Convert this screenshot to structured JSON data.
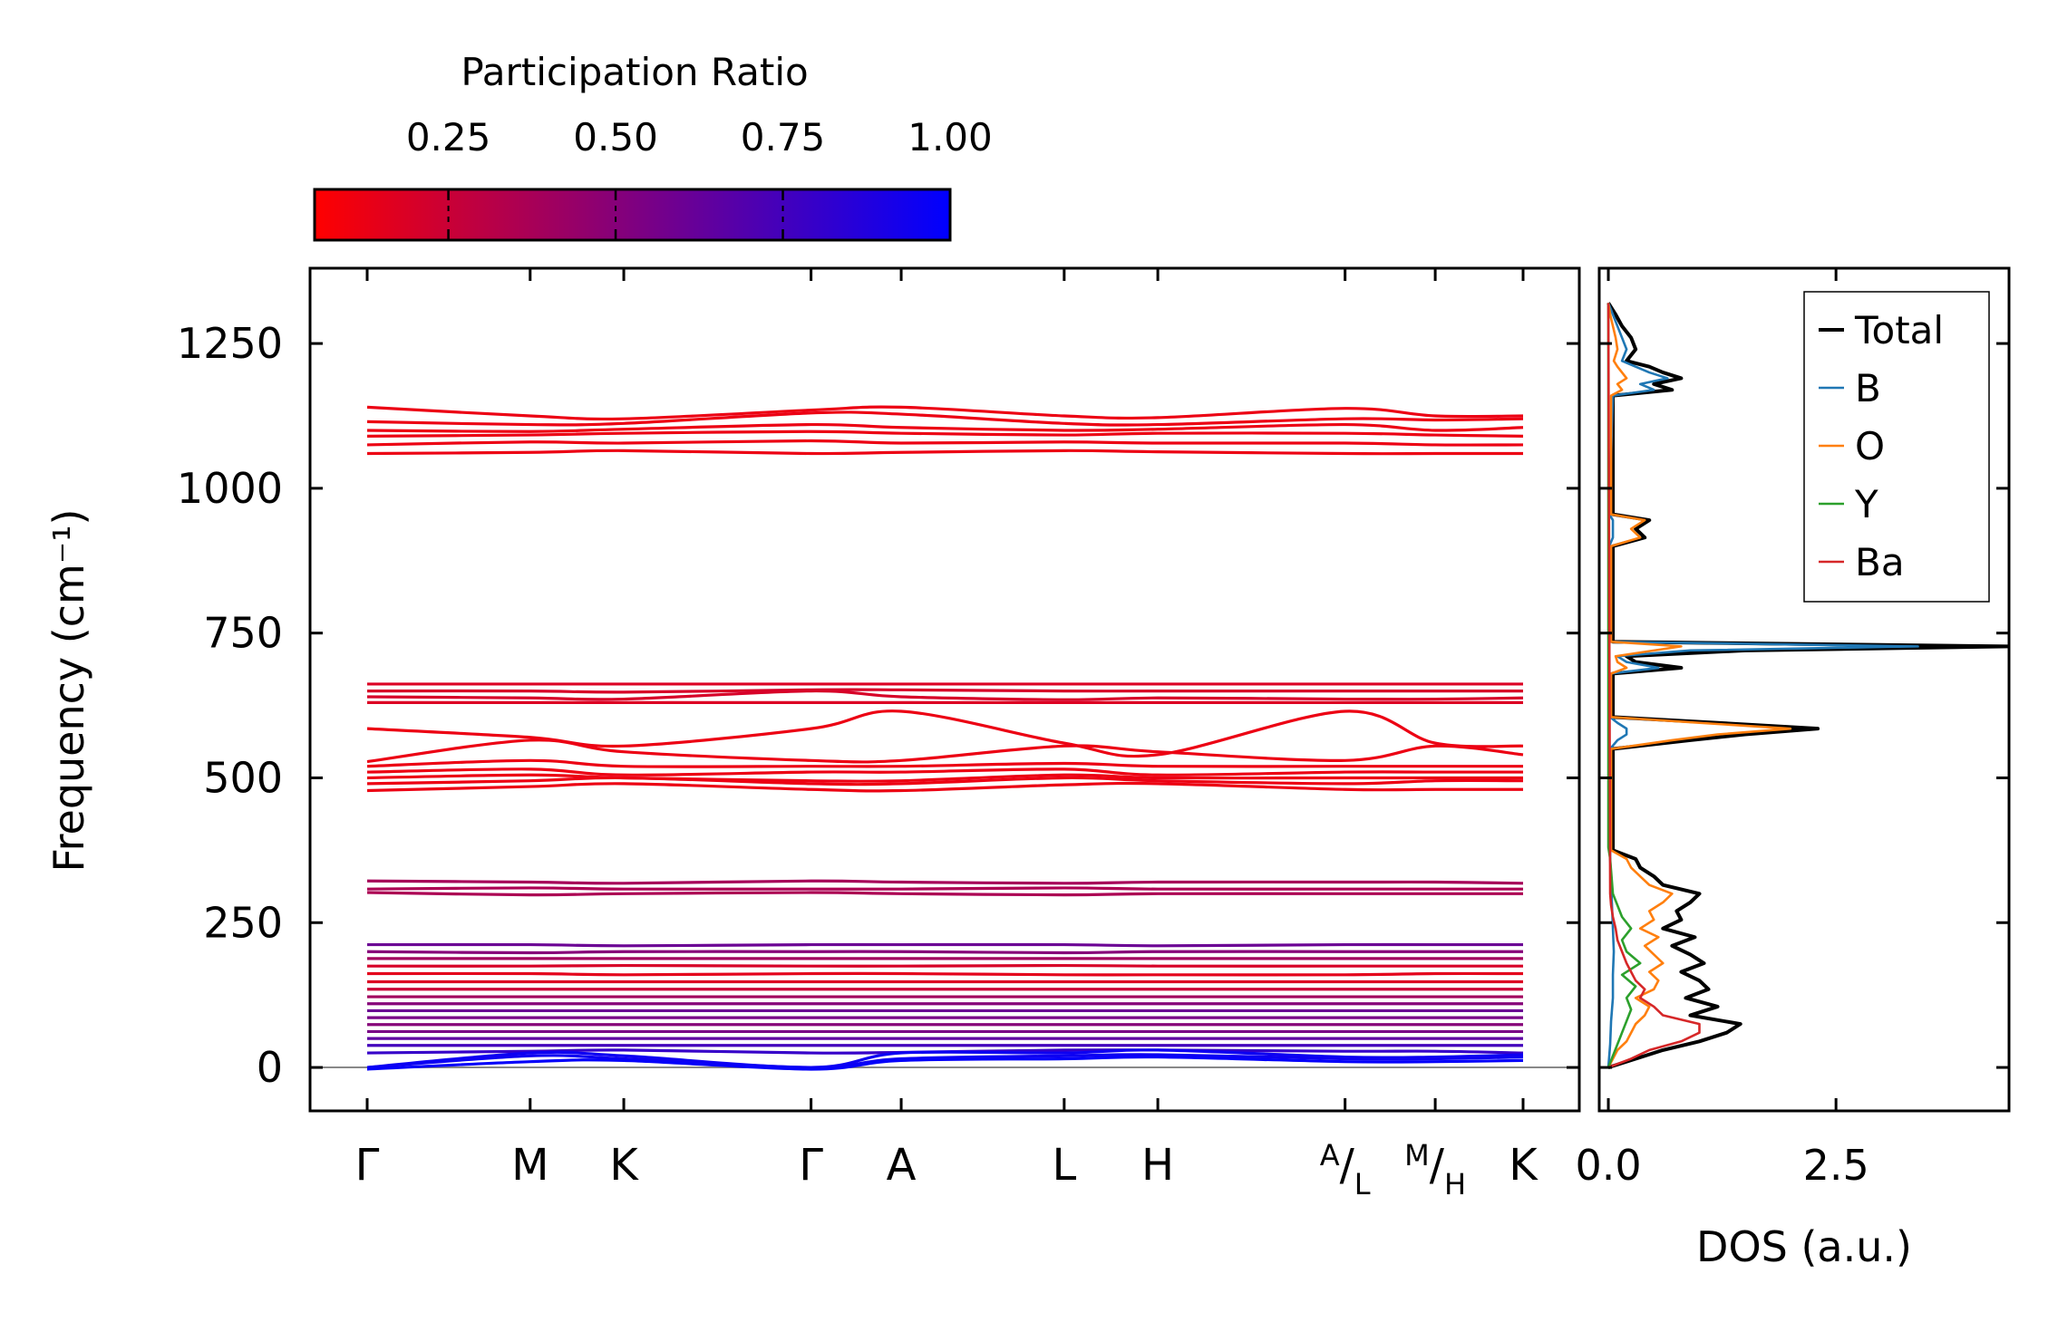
{
  "chart_data": [
    {
      "type": "line",
      "subtype": "phonon-band-structure",
      "ylabel": "Frequency (cm⁻¹)",
      "ylim": [
        -75,
        1380
      ],
      "yticks": [
        "0",
        "250",
        "500",
        "750",
        "1000",
        "1250"
      ],
      "ytick_values": [
        0,
        250,
        500,
        750,
        1000,
        1250
      ],
      "kpoint_labels": [
        "Γ",
        "M",
        "K",
        "Γ",
        "A",
        "L",
        "H",
        "A/L",
        "M/H",
        "K"
      ],
      "kpoint_fraction": [
        0.0,
        0.141,
        0.222,
        0.384,
        0.462,
        0.603,
        0.684,
        0.846,
        0.924,
        1.0
      ],
      "zero_line": 0,
      "colorbar": {
        "label": "Participation Ratio",
        "range": [
          0.05,
          1.0
        ],
        "ticks": [
          "0.25",
          "0.50",
          "0.75",
          "1.00"
        ],
        "tick_values": [
          0.25,
          0.5,
          0.75,
          1.0
        ],
        "color_low": "#ff0000",
        "color_high": "#0000ff"
      },
      "bands": [
        {
          "name": "high-band-1",
          "y": [
            1140,
            1125,
            1120,
            1135,
            1140,
            1125,
            1122,
            1138,
            1125,
            1125
          ],
          "pr": 0.12
        },
        {
          "name": "high-band-2",
          "y": [
            1115,
            1110,
            1112,
            1130,
            1128,
            1112,
            1110,
            1120,
            1118,
            1120
          ],
          "pr": 0.12
        },
        {
          "name": "high-band-3",
          "y": [
            1100,
            1098,
            1102,
            1110,
            1105,
            1100,
            1102,
            1110,
            1100,
            1105
          ],
          "pr": 0.12
        },
        {
          "name": "high-band-4",
          "y": [
            1090,
            1092,
            1095,
            1098,
            1095,
            1092,
            1095,
            1095,
            1092,
            1090
          ],
          "pr": 0.12
        },
        {
          "name": "high-band-5",
          "y": [
            1075,
            1080,
            1078,
            1082,
            1078,
            1080,
            1078,
            1078,
            1075,
            1075
          ],
          "pr": 0.12
        },
        {
          "name": "high-band-6",
          "y": [
            1060,
            1062,
            1065,
            1060,
            1062,
            1065,
            1063,
            1060,
            1060,
            1060
          ],
          "pr": 0.12
        },
        {
          "name": "mid-band-1",
          "y": [
            662,
            662,
            662,
            662,
            662,
            662,
            662,
            662,
            662,
            662
          ],
          "pr": 0.18
        },
        {
          "name": "mid-band-2",
          "y": [
            650,
            650,
            648,
            652,
            652,
            650,
            650,
            650,
            650,
            650
          ],
          "pr": 0.2
        },
        {
          "name": "mid-band-3",
          "y": [
            640,
            638,
            636,
            650,
            640,
            635,
            638,
            636,
            636,
            638
          ],
          "pr": 0.2
        },
        {
          "name": "mid-band-4",
          "y": [
            630,
            630,
            630,
            630,
            630,
            630,
            630,
            630,
            630,
            630
          ],
          "pr": 0.18
        },
        {
          "name": "mid-band-5",
          "y": [
            585,
            570,
            555,
            585,
            615,
            560,
            540,
            615,
            560,
            555
          ],
          "pr": 0.12
        },
        {
          "name": "mid-band-6",
          "y": [
            528,
            565,
            545,
            530,
            530,
            555,
            545,
            530,
            555,
            540
          ],
          "pr": 0.12
        },
        {
          "name": "mid-band-7",
          "y": [
            520,
            530,
            520,
            520,
            520,
            525,
            520,
            520,
            520,
            520
          ],
          "pr": 0.12
        },
        {
          "name": "mid-band-8",
          "y": [
            510,
            515,
            505,
            510,
            510,
            515,
            505,
            510,
            510,
            510
          ],
          "pr": 0.12
        },
        {
          "name": "mid-band-9",
          "y": [
            500,
            505,
            500,
            495,
            495,
            505,
            500,
            500,
            500,
            500
          ],
          "pr": 0.12
        },
        {
          "name": "mid-band-10",
          "y": [
            490,
            495,
            500,
            490,
            490,
            500,
            495,
            490,
            495,
            495
          ],
          "pr": 0.12
        },
        {
          "name": "mid-band-11",
          "y": [
            478,
            485,
            490,
            480,
            478,
            488,
            490,
            480,
            480,
            480
          ],
          "pr": 0.12
        },
        {
          "name": "band-300-1",
          "y": [
            322,
            320,
            318,
            322,
            320,
            318,
            320,
            320,
            320,
            318
          ],
          "pr": 0.38
        },
        {
          "name": "band-300-2",
          "y": [
            308,
            310,
            308,
            308,
            308,
            310,
            308,
            308,
            308,
            308
          ],
          "pr": 0.36
        },
        {
          "name": "band-300-3",
          "y": [
            302,
            298,
            300,
            302,
            300,
            298,
            300,
            300,
            300,
            300
          ],
          "pr": 0.36
        },
        {
          "name": "low-band-1",
          "y": [
            212,
            212,
            210,
            212,
            212,
            212,
            210,
            212,
            212,
            212
          ],
          "pr": 0.6
        },
        {
          "name": "low-band-2",
          "y": [
            200,
            198,
            200,
            200,
            200,
            198,
            200,
            200,
            200,
            200
          ],
          "pr": 0.5
        },
        {
          "name": "low-band-3",
          "y": [
            188,
            188,
            188,
            188,
            188,
            188,
            188,
            188,
            188,
            188
          ],
          "pr": 0.4
        },
        {
          "name": "low-band-4",
          "y": [
            175,
            175,
            176,
            175,
            175,
            176,
            175,
            175,
            175,
            175
          ],
          "pr": 0.2
        },
        {
          "name": "low-band-5",
          "y": [
            162,
            162,
            160,
            162,
            162,
            160,
            160,
            160,
            162,
            162
          ],
          "pr": 0.15
        },
        {
          "name": "low-band-6",
          "y": [
            148,
            148,
            148,
            148,
            148,
            148,
            148,
            148,
            148,
            148
          ],
          "pr": 0.18
        },
        {
          "name": "low-band-7",
          "y": [
            135,
            135,
            135,
            135,
            135,
            135,
            135,
            135,
            135,
            135
          ],
          "pr": 0.25
        },
        {
          "name": "low-band-8",
          "y": [
            122,
            122,
            122,
            122,
            122,
            122,
            122,
            122,
            122,
            122
          ],
          "pr": 0.4
        },
        {
          "name": "low-band-9",
          "y": [
            110,
            110,
            110,
            110,
            110,
            110,
            110,
            110,
            110,
            110
          ],
          "pr": 0.5
        },
        {
          "name": "low-band-10",
          "y": [
            98,
            98,
            98,
            98,
            98,
            98,
            98,
            98,
            98,
            98
          ],
          "pr": 0.6
        },
        {
          "name": "low-band-11",
          "y": [
            86,
            86,
            86,
            86,
            86,
            86,
            86,
            86,
            86,
            86
          ],
          "pr": 0.55
        },
        {
          "name": "low-band-12",
          "y": [
            74,
            74,
            74,
            74,
            74,
            74,
            74,
            74,
            74,
            74
          ],
          "pr": 0.5
        },
        {
          "name": "low-band-13",
          "y": [
            62,
            62,
            62,
            62,
            62,
            62,
            62,
            62,
            62,
            62
          ],
          "pr": 0.55
        },
        {
          "name": "low-band-14",
          "y": [
            50,
            50,
            50,
            50,
            50,
            50,
            50,
            50,
            50,
            50
          ],
          "pr": 0.65
        },
        {
          "name": "low-band-15",
          "y": [
            38,
            38,
            38,
            38,
            38,
            38,
            38,
            38,
            38,
            38
          ],
          "pr": 0.75
        },
        {
          "name": "low-band-16",
          "y": [
            25,
            28,
            30,
            25,
            26,
            30,
            30,
            28,
            28,
            25
          ],
          "pr": 0.8
        },
        {
          "name": "acoustic-1",
          "y": [
            0,
            25,
            20,
            0,
            25,
            25,
            30,
            18,
            18,
            22
          ],
          "pr": 0.95
        },
        {
          "name": "acoustic-2",
          "y": [
            0,
            20,
            15,
            0,
            15,
            20,
            22,
            15,
            15,
            18
          ],
          "pr": 0.95
        },
        {
          "name": "acoustic-3",
          "y": [
            -3,
            10,
            12,
            -3,
            12,
            15,
            18,
            10,
            10,
            12
          ],
          "pr": 0.98
        }
      ]
    },
    {
      "type": "line",
      "subtype": "density-of-states",
      "xlabel": "DOS (a.u.)",
      "xlim": [
        -0.1,
        4.4
      ],
      "xticks": [
        "0.0",
        "2.5"
      ],
      "xtick_values": [
        0.0,
        2.5
      ],
      "ylim": [
        -75,
        1380
      ],
      "legend": {
        "position": "top-right",
        "entries": [
          "Total",
          "B",
          "O",
          "Y",
          "Ba"
        ]
      },
      "series": [
        {
          "name": "Total",
          "color": "#000000",
          "freq": [
            0,
            15,
            30,
            45,
            60,
            75,
            90,
            105,
            120,
            135,
            150,
            165,
            180,
            195,
            210,
            225,
            240,
            255,
            270,
            285,
            300,
            315,
            330,
            345,
            360,
            375,
            550,
            565,
            575,
            585,
            595,
            605,
            680,
            690,
            700,
            710,
            720,
            727,
            735,
            900,
            915,
            930,
            945,
            955,
            1160,
            1170,
            1180,
            1190,
            1200,
            1210,
            1220,
            1240,
            1260,
            1280,
            1300,
            1320
          ],
          "value": [
            0,
            0.3,
            0.6,
            1.0,
            1.3,
            1.45,
            0.9,
            1.2,
            0.85,
            1.1,
            1.0,
            0.8,
            1.05,
            0.9,
            0.7,
            0.95,
            0.6,
            0.8,
            0.75,
            0.9,
            1.0,
            0.6,
            0.5,
            0.35,
            0.3,
            0.05,
            0.05,
            0.9,
            1.5,
            2.3,
            1.2,
            0.05,
            0.05,
            0.8,
            0.3,
            0.2,
            1.5,
            4.4,
            0.05,
            0.05,
            0.4,
            0.3,
            0.45,
            0.05,
            0.05,
            0.7,
            0.5,
            0.8,
            0.6,
            0.45,
            0.2,
            0.3,
            0.25,
            0.15,
            0.08,
            0
          ]
        },
        {
          "name": "B",
          "color": "#1f77b4",
          "freq": [
            0,
            40,
            80,
            120,
            160,
            200,
            240,
            280,
            320,
            360,
            550,
            565,
            575,
            585,
            595,
            605,
            680,
            690,
            700,
            710,
            720,
            727,
            735,
            900,
            915,
            930,
            945,
            955,
            1160,
            1170,
            1180,
            1190,
            1200,
            1210,
            1220,
            1240,
            1260,
            1280,
            1300,
            1320
          ],
          "value": [
            0,
            0.02,
            0.03,
            0.05,
            0.05,
            0.06,
            0.05,
            0.04,
            0.03,
            0.02,
            0.02,
            0.1,
            0.2,
            0.2,
            0.1,
            0.02,
            0.02,
            0.55,
            0.2,
            0.1,
            0.9,
            3.4,
            0.02,
            0.01,
            0.05,
            0.05,
            0.05,
            0.01,
            0.05,
            0.5,
            0.35,
            0.65,
            0.45,
            0.3,
            0.15,
            0.2,
            0.15,
            0.1,
            0.05,
            0
          ]
        },
        {
          "name": "O",
          "color": "#ff7f0e",
          "freq": [
            0,
            15,
            30,
            45,
            60,
            75,
            90,
            105,
            120,
            135,
            150,
            165,
            180,
            195,
            210,
            225,
            240,
            255,
            270,
            285,
            300,
            315,
            330,
            345,
            360,
            375,
            550,
            565,
            575,
            585,
            595,
            605,
            680,
            690,
            700,
            710,
            720,
            727,
            735,
            900,
            915,
            930,
            945,
            955,
            1160,
            1170,
            1180,
            1190,
            1200,
            1210,
            1220,
            1240,
            1260,
            1280,
            1300,
            1320
          ],
          "value": [
            0,
            0.05,
            0.1,
            0.2,
            0.25,
            0.3,
            0.4,
            0.45,
            0.3,
            0.5,
            0.55,
            0.45,
            0.6,
            0.5,
            0.4,
            0.55,
            0.35,
            0.5,
            0.45,
            0.6,
            0.7,
            0.45,
            0.35,
            0.25,
            0.2,
            0.03,
            0.03,
            0.7,
            1.2,
            2.0,
            1.0,
            0.03,
            0.03,
            0.2,
            0.1,
            0.08,
            0.5,
            0.8,
            0.03,
            0.03,
            0.35,
            0.25,
            0.4,
            0.03,
            0.03,
            0.15,
            0.1,
            0.2,
            0.15,
            0.1,
            0.06,
            0.1,
            0.08,
            0.05,
            0.02,
            0
          ]
        },
        {
          "name": "Y",
          "color": "#2ca02c",
          "freq": [
            0,
            20,
            40,
            60,
            80,
            100,
            120,
            140,
            160,
            180,
            200,
            220,
            240,
            260,
            280,
            300,
            320,
            340,
            360,
            380,
            1320
          ],
          "value": [
            0,
            0.05,
            0.1,
            0.15,
            0.2,
            0.25,
            0.2,
            0.3,
            0.15,
            0.35,
            0.2,
            0.15,
            0.25,
            0.15,
            0.1,
            0.05,
            0.04,
            0.03,
            0.02,
            0.0,
            0
          ]
        },
        {
          "name": "Ba",
          "color": "#d62728",
          "freq": [
            0,
            15,
            30,
            45,
            60,
            75,
            90,
            105,
            120,
            135,
            150,
            165,
            180,
            200,
            220,
            240,
            260,
            280,
            300,
            1320
          ],
          "value": [
            0,
            0.25,
            0.45,
            0.8,
            1.0,
            1.0,
            0.6,
            0.5,
            0.35,
            0.4,
            0.3,
            0.25,
            0.2,
            0.15,
            0.1,
            0.08,
            0.05,
            0.03,
            0.02,
            0
          ]
        }
      ]
    }
  ]
}
